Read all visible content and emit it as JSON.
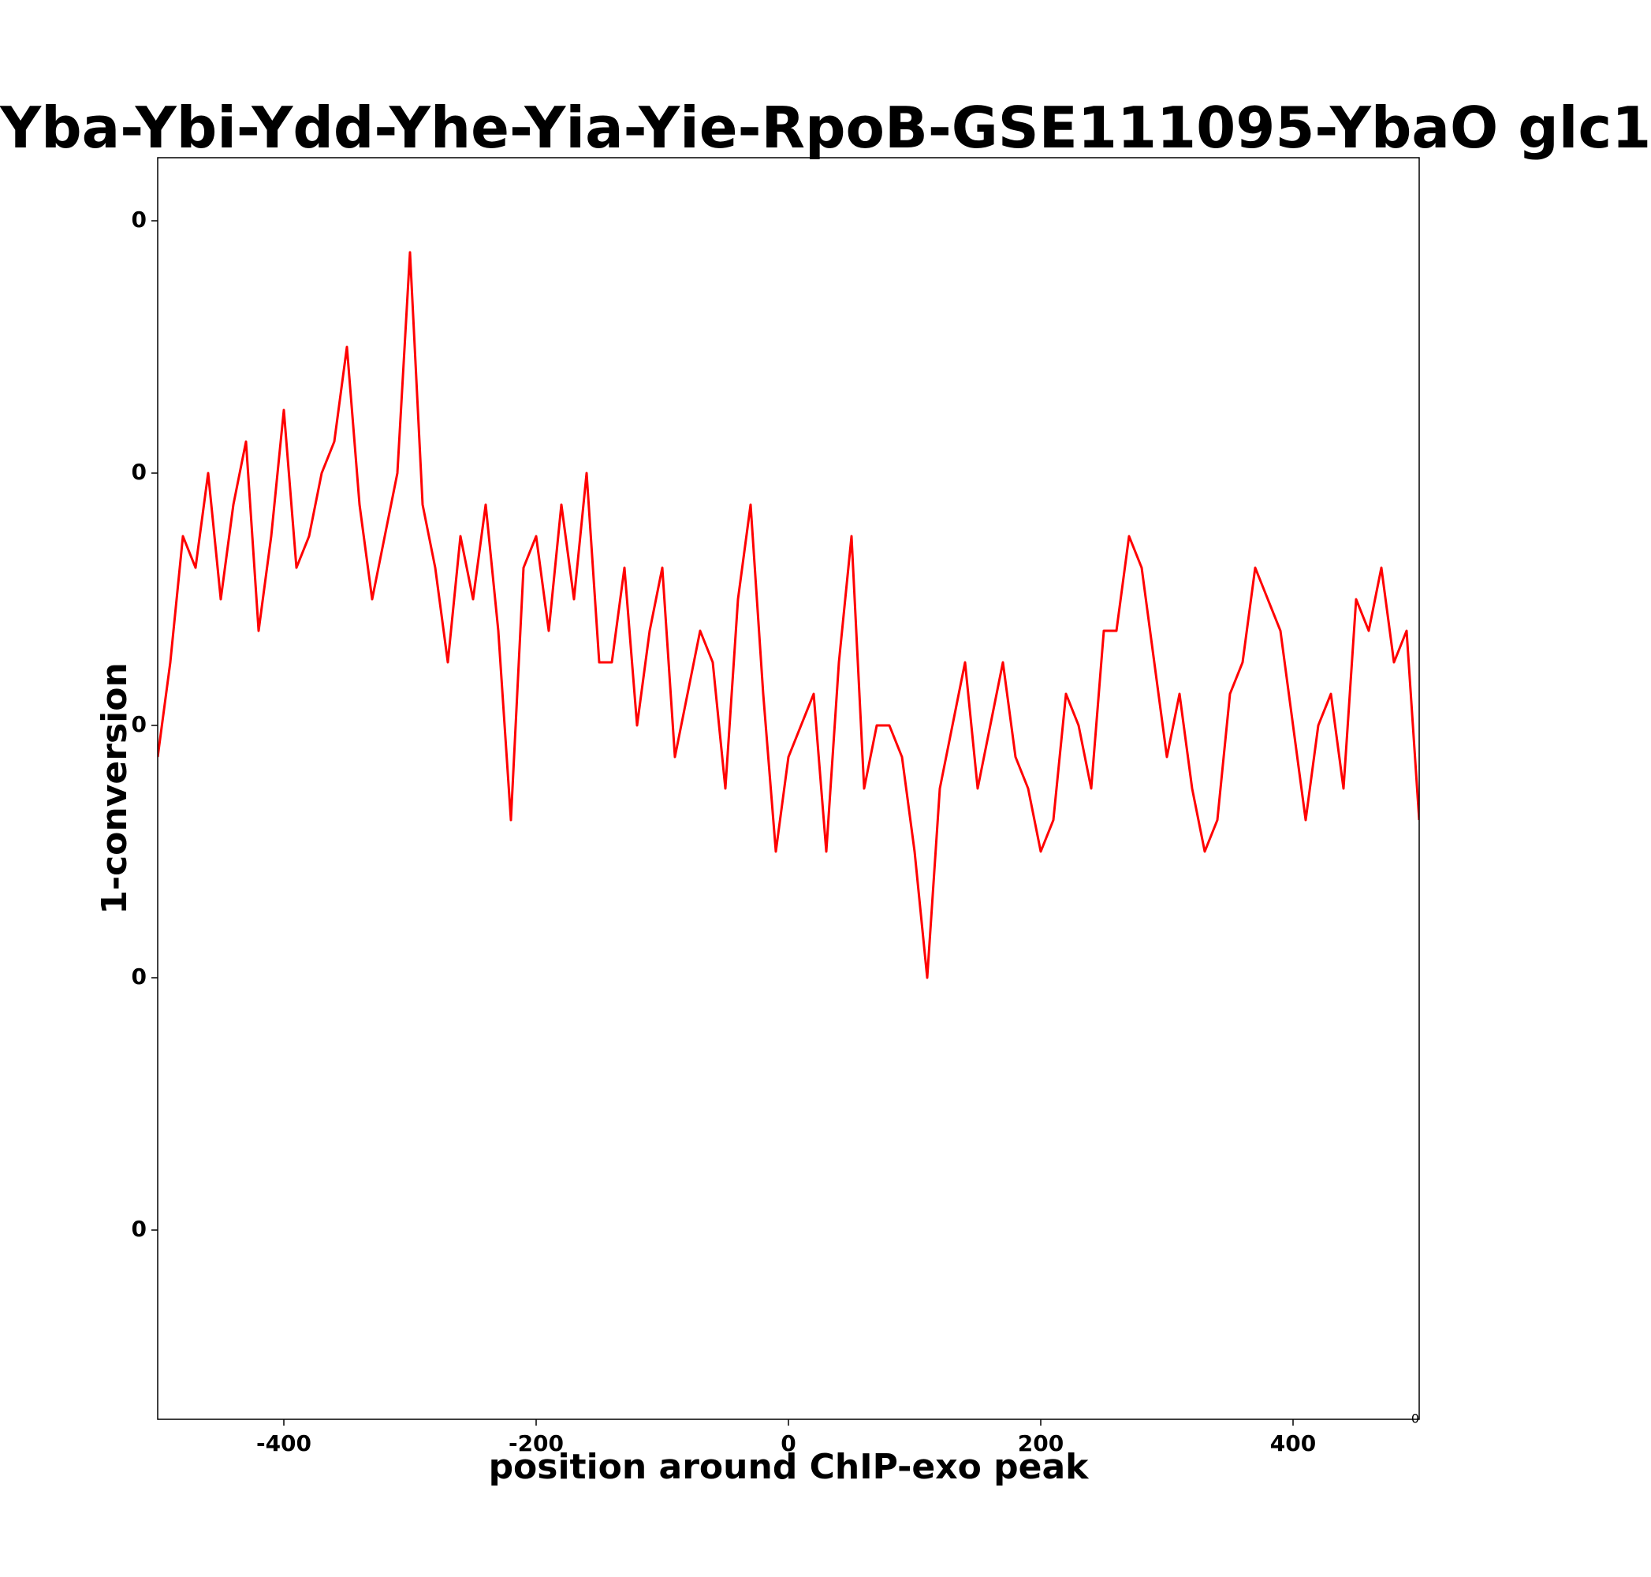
{
  "chart_data": {
    "type": "line",
    "title": "Yba-Ybi-Ydd-Yhe-Yia-Yie-RpoB-GSE111095-YbaO glc1",
    "xlabel": "position around ChIP-exo peak",
    "ylabel": "1-conversion",
    "xlim": [
      -500,
      500
    ],
    "ylim": [
      -0.9,
      1.1
    ],
    "x_ticks": [
      -400,
      -200,
      0,
      200,
      400
    ],
    "x_tick_labels": [
      "-400",
      "-200",
      "0",
      "200",
      "400"
    ],
    "y_ticks": [
      -0.6,
      -0.2,
      0.2,
      0.6,
      1.0
    ],
    "y_tick_labels": [
      "0",
      "0",
      "0",
      "0",
      "0"
    ],
    "offset_text": "0",
    "grid": false,
    "series": [
      {
        "color": "#ff0000",
        "x_start": -500,
        "x_step": 10,
        "values": [
          0.15,
          0.3,
          0.5,
          0.45,
          0.6,
          0.4,
          0.55,
          0.65,
          0.35,
          0.5,
          0.7,
          0.45,
          0.5,
          0.6,
          0.65,
          0.8,
          0.55,
          0.4,
          0.5,
          0.6,
          0.95,
          0.55,
          0.45,
          0.3,
          0.5,
          0.4,
          0.55,
          0.35,
          0.05,
          0.45,
          0.5,
          0.35,
          0.55,
          0.4,
          0.6,
          0.3,
          0.3,
          0.45,
          0.2,
          0.35,
          0.45,
          0.15,
          0.25,
          0.35,
          0.3,
          0.1,
          0.4,
          0.55,
          0.25,
          0.0,
          0.15,
          0.2,
          0.25,
          0.0,
          0.3,
          0.5,
          0.1,
          0.2,
          0.2,
          0.15,
          0.0,
          -0.2,
          0.1,
          0.2,
          0.3,
          0.1,
          0.2,
          0.3,
          0.15,
          0.1,
          0.0,
          0.05,
          0.25,
          0.2,
          0.1,
          0.35,
          0.35,
          0.5,
          0.45,
          0.3,
          0.15,
          0.25,
          0.1,
          0.0,
          0.05,
          0.25,
          0.3,
          0.45,
          0.4,
          0.35,
          0.2,
          0.05,
          0.2,
          0.25,
          0.1,
          0.4,
          0.35,
          0.45,
          0.3,
          0.35,
          0.05
        ]
      }
    ]
  }
}
